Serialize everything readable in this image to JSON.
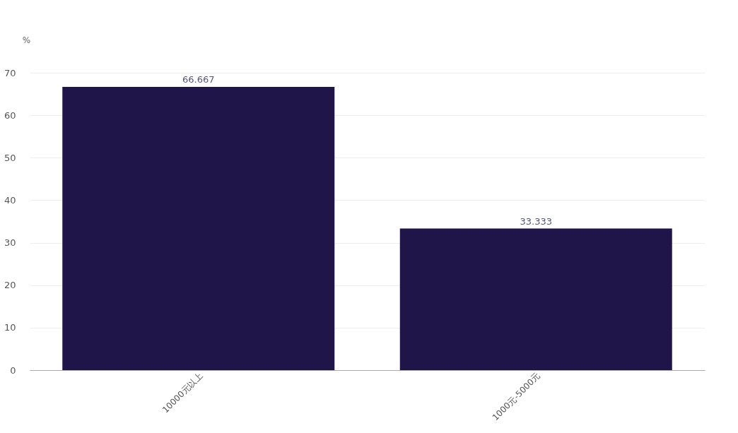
{
  "chart_data": {
    "type": "bar",
    "ylabel": "%",
    "categories": [
      "10000元以上",
      "1000元-5000元"
    ],
    "values": [
      66.667,
      33.333
    ],
    "color": "#201548",
    "ylim": [
      0,
      70
    ],
    "yticks": [
      0,
      10,
      20,
      30,
      40,
      50,
      60,
      70
    ],
    "grid": "y",
    "data_labels": true
  }
}
